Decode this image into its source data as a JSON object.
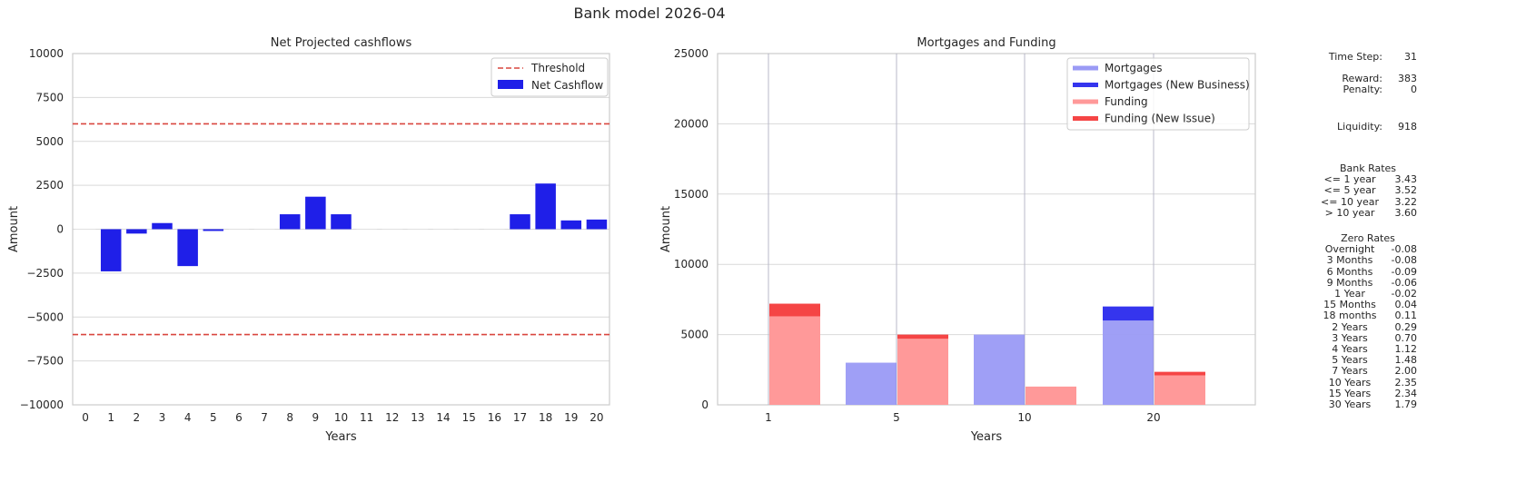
{
  "figure_title": "Bank model 2026-04",
  "chart_data": [
    {
      "type": "bar",
      "title": "Net Projected cashflows",
      "xlabel": "Years",
      "ylabel": "Amount",
      "ylim": [
        -10000,
        10000
      ],
      "yticks": [
        10000,
        7500,
        5000,
        2500,
        0,
        -2500,
        -5000,
        -7500,
        -10000
      ],
      "ytick_labels": [
        "10000",
        "7500",
        "5000",
        "2500",
        "0",
        "−2500",
        "−5000",
        "−7500",
        "−10000"
      ],
      "categories": [
        "0",
        "1",
        "2",
        "3",
        "4",
        "5",
        "6",
        "7",
        "8",
        "9",
        "10",
        "11",
        "12",
        "13",
        "14",
        "15",
        "16",
        "17",
        "18",
        "19",
        "20"
      ],
      "values": [
        0,
        -2400,
        -250,
        350,
        -2100,
        -100,
        0,
        0,
        850,
        1850,
        850,
        0,
        0,
        0,
        0,
        0,
        0,
        850,
        2600,
        500,
        550
      ],
      "threshold": 6000,
      "legend": [
        "Threshold",
        "Net Cashflow"
      ],
      "legend_position": "top-right",
      "grid": "horizontal",
      "colors": {
        "bar": "#1f1fe8",
        "threshold": "#d9463f"
      }
    },
    {
      "type": "bar",
      "title": "Mortgages and Funding",
      "xlabel": "Years",
      "ylabel": "Amount",
      "ylim": [
        0,
        25000
      ],
      "yticks": [
        0,
        5000,
        10000,
        15000,
        20000,
        25000
      ],
      "categories": [
        "1",
        "5",
        "10",
        "20"
      ],
      "series": [
        {
          "name": "Mortgages",
          "values": [
            0,
            3000,
            5000,
            6000
          ]
        },
        {
          "name": "Mortgages (New Business)",
          "values": [
            0,
            0,
            0,
            1000
          ]
        },
        {
          "name": "Funding",
          "values": [
            6300,
            4700,
            1300,
            2100
          ]
        },
        {
          "name": "Funding (New Issue)",
          "values": [
            900,
            300,
            0,
            250
          ]
        }
      ],
      "legend_position": "top-right",
      "grid": "both",
      "colors": {
        "mortgages": "#9a9af5",
        "mortgages_new": "#3535ee",
        "funding": "#ff9999",
        "funding_new": "#f54545"
      }
    }
  ],
  "stats": {
    "time_step_label": "Time Step:",
    "time_step": "31",
    "reward_label": "Reward:",
    "reward": "383",
    "penalty_label": "Penalty:",
    "penalty": "0",
    "liquidity_label": "Liquidity:",
    "liquidity": "918"
  },
  "bank_rates": {
    "title": "Bank Rates",
    "rows": [
      {
        "label": "<= 1 year",
        "value": "3.43"
      },
      {
        "label": "<= 5 year",
        "value": "3.52"
      },
      {
        "label": "<= 10 year",
        "value": "3.22"
      },
      {
        "label": "> 10 year",
        "value": "3.60"
      }
    ]
  },
  "zero_rates": {
    "title": "Zero Rates",
    "rows": [
      {
        "label": "Overnight",
        "value": "-0.08"
      },
      {
        "label": "3 Months",
        "value": "-0.08"
      },
      {
        "label": "6 Months",
        "value": "-0.09"
      },
      {
        "label": "9 Months",
        "value": "-0.06"
      },
      {
        "label": "1 Year",
        "value": "-0.02"
      },
      {
        "label": "15 Months",
        "value": "0.04"
      },
      {
        "label": "18 months",
        "value": "0.11"
      },
      {
        "label": "2 Years",
        "value": "0.29"
      },
      {
        "label": "3 Years",
        "value": "0.70"
      },
      {
        "label": "4 Years",
        "value": "1.12"
      },
      {
        "label": "5 Years",
        "value": "1.48"
      },
      {
        "label": "7 Years",
        "value": "2.00"
      },
      {
        "label": "10 Years",
        "value": "2.35"
      },
      {
        "label": "15 Years",
        "value": "2.34"
      },
      {
        "label": "30 Years",
        "value": "1.79"
      }
    ]
  }
}
